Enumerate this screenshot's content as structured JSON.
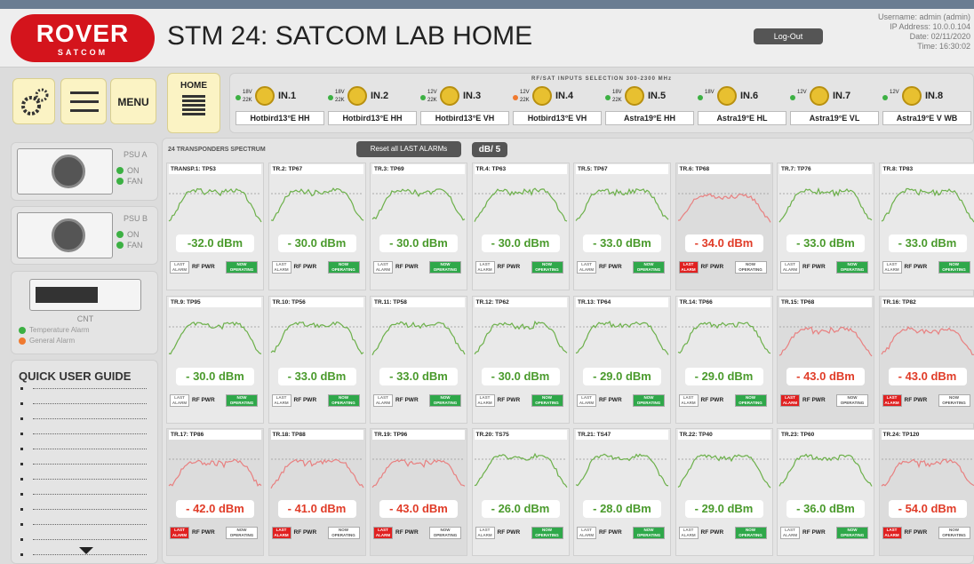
{
  "header": {
    "logo": "ROVER",
    "logo_sub": "SATCOM",
    "title": "STM 24: SATCOM LAB HOME",
    "logout": "Log-Out",
    "user_info": [
      "Username: admin (admin)",
      "IP Address: 10.0.0.104",
      "Date: 02/11/2020",
      "Time: 16:30:02"
    ]
  },
  "toolbar": {
    "menu": "MENU",
    "home": "HOME"
  },
  "inputs": {
    "title": "RF/SAT INPUTS SELECTION 300-2300 MHz",
    "items": [
      {
        "name": "IN.1",
        "voltage": "18V",
        "tone": "22K",
        "label": "Hotbird13°E HH",
        "dot_color": "#3cb043"
      },
      {
        "name": "IN.2",
        "voltage": "18V",
        "tone": "22K",
        "label": "Hotbird13°E HH",
        "dot_color": "#3cb043"
      },
      {
        "name": "IN.3",
        "voltage": "12V",
        "tone": "22K",
        "label": "Hotbird13°E VH",
        "dot_color": "#3cb043"
      },
      {
        "name": "IN.4",
        "voltage": "12V",
        "tone": "22K",
        "label": "Hotbird13°E VH",
        "dot_color": "#f07a30"
      },
      {
        "name": "IN.5",
        "voltage": "18V",
        "tone": "22K",
        "label": "Astra19°E HH",
        "dot_color": "#3cb043"
      },
      {
        "name": "IN.6",
        "voltage": "18V",
        "label": "Astra19°E HL",
        "dot_color": "#3cb043"
      },
      {
        "name": "IN.7",
        "voltage": "12V",
        "label": "Astra19°E VL",
        "dot_color": "#3cb043"
      },
      {
        "name": "IN.8",
        "voltage": "12V",
        "label": "Astra19°E V WB",
        "dot_color": "#3cb043"
      }
    ]
  },
  "sidebar": {
    "psu": [
      {
        "title": "PSU A",
        "on": "ON",
        "fan": "FAN"
      },
      {
        "title": "PSU B",
        "on": "ON",
        "fan": "FAN"
      }
    ],
    "cnt": {
      "title": "CNT",
      "alarms": [
        {
          "text": "Temperature Alarm",
          "color": "#3cb043"
        },
        {
          "text": "General Alarm",
          "color": "#f07a30"
        }
      ]
    },
    "guide": {
      "title": "QUICK USER GUIDE"
    }
  },
  "spectrum": {
    "title": "24 TRANSPONDERS SPECTRUM",
    "reset": "Reset all LAST ALARMs",
    "scale": "dB/ 5",
    "labels": {
      "last_alarm": "LAST ALARM",
      "rf_pwr": "RF PWR",
      "now_operating": "NOW OPERATING"
    },
    "transponders": [
      {
        "name": "TRANSP.1: TP53",
        "level": "-32.0 dBm",
        "alarm": false
      },
      {
        "name": "TR.2: TP67",
        "level": "- 30.0 dBm",
        "alarm": false
      },
      {
        "name": "TR.3: TP69",
        "level": "- 30.0 dBm",
        "alarm": false
      },
      {
        "name": "TR.4: TP63",
        "level": "- 30.0 dBm",
        "alarm": false
      },
      {
        "name": "TR.5: TP67",
        "level": "- 33.0 dBm",
        "alarm": false
      },
      {
        "name": "TR.6: TP68",
        "level": "- 34.0 dBm",
        "alarm": true
      },
      {
        "name": "TR.7: TP76",
        "level": "- 33.0 dBm",
        "alarm": false
      },
      {
        "name": "TR.8: TP83",
        "level": "- 33.0 dBm",
        "alarm": false
      },
      {
        "name": "TR.9: TP95",
        "level": "- 30.0 dBm",
        "alarm": false
      },
      {
        "name": "TR.10: TP56",
        "level": "- 33.0 dBm",
        "alarm": false
      },
      {
        "name": "TR.11: TP58",
        "level": "- 33.0 dBm",
        "alarm": false
      },
      {
        "name": "TR.12: TP62",
        "level": "- 30.0 dBm",
        "alarm": false
      },
      {
        "name": "TR.13: TP64",
        "level": "- 29.0 dBm",
        "alarm": false
      },
      {
        "name": "TR.14: TP66",
        "level": "- 29.0 dBm",
        "alarm": false
      },
      {
        "name": "TR.15: TP68",
        "level": "- 43.0 dBm",
        "alarm": true
      },
      {
        "name": "TR.16: TP82",
        "level": "- 43.0 dBm",
        "alarm": true
      },
      {
        "name": "TR.17: TP86",
        "level": "- 42.0 dBm",
        "alarm": true
      },
      {
        "name": "TR.18: TP88",
        "level": "- 41.0 dBm",
        "alarm": true
      },
      {
        "name": "TR.19: TP96",
        "level": "- 43.0 dBm",
        "alarm": true
      },
      {
        "name": "TR.20: TS75",
        "level": "- 26.0 dBm",
        "alarm": false
      },
      {
        "name": "TR.21: TS47",
        "level": "- 28.0 dBm",
        "alarm": false
      },
      {
        "name": "TR.22: TP40",
        "level": "- 29.0 dBm",
        "alarm": false
      },
      {
        "name": "TR.23: TP60",
        "level": "- 36.0 dBm",
        "alarm": false
      },
      {
        "name": "TR.24: TP120",
        "level": "- 54.0 dBm",
        "alarm": true
      }
    ]
  }
}
